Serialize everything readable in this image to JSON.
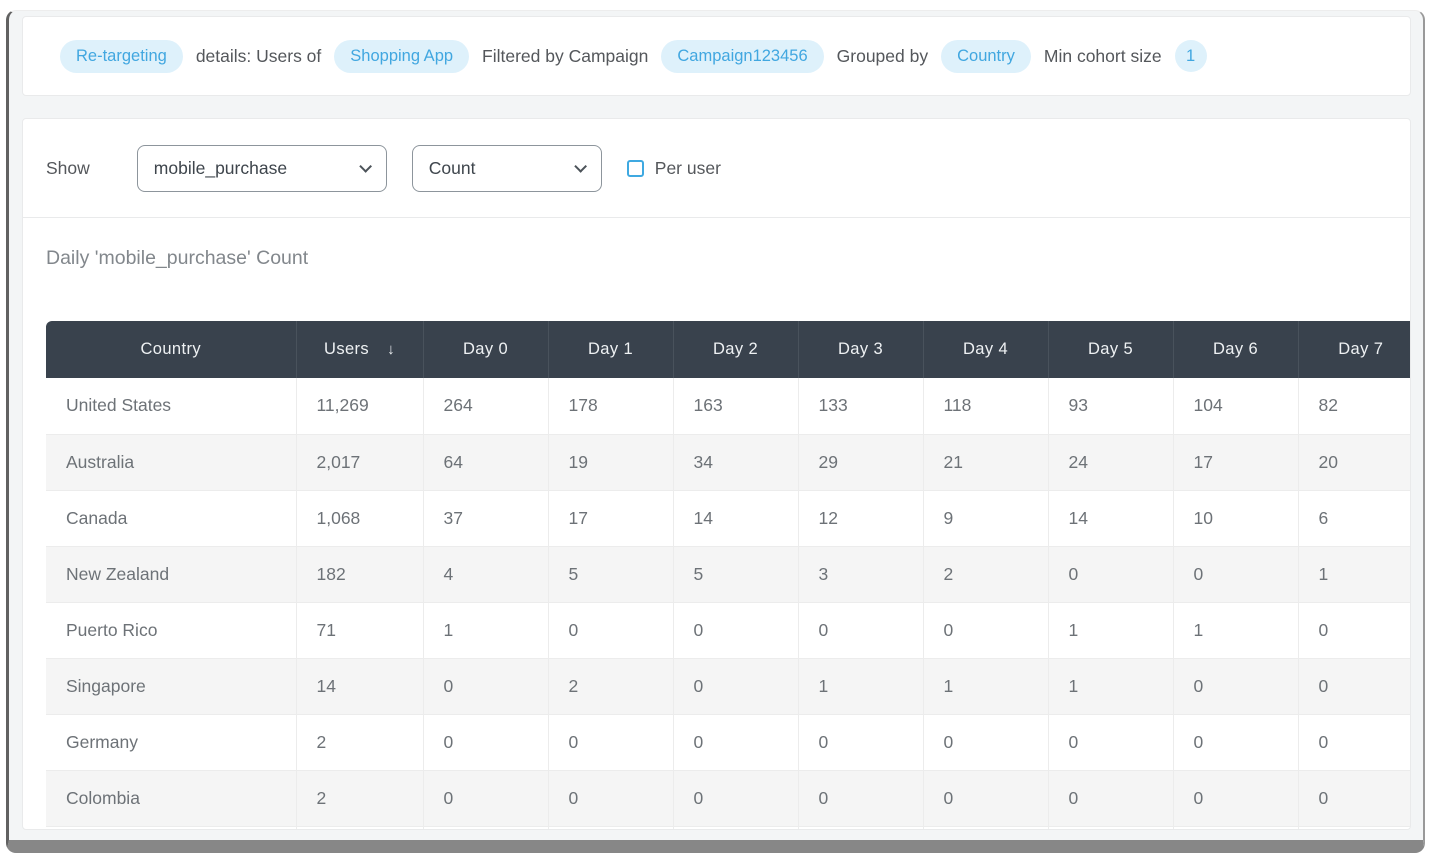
{
  "breadcrumb": {
    "segments": [
      {
        "type": "pill",
        "name": "cohort-name-pill",
        "text": "Re-targeting"
      },
      {
        "type": "text",
        "name": "crumb-text",
        "text": "details: Users of"
      },
      {
        "type": "pill",
        "name": "app-name-pill",
        "text": "Shopping App"
      },
      {
        "type": "text",
        "name": "crumb-text",
        "text": "Filtered by Campaign"
      },
      {
        "type": "pill",
        "name": "campaign-pill",
        "text": "Campaign123456"
      },
      {
        "type": "text",
        "name": "crumb-text",
        "text": "Grouped by"
      },
      {
        "type": "pill",
        "name": "group-by-pill",
        "text": "Country"
      },
      {
        "type": "text",
        "name": "crumb-text",
        "text": "Min cohort size"
      },
      {
        "type": "pill-round",
        "name": "min-cohort-size-pill",
        "text": "1"
      }
    ]
  },
  "filters": {
    "show_label": "Show",
    "event_select_value": "mobile_purchase",
    "aggregation_select_value": "Count",
    "per_user_label": "Per user",
    "per_user_checked": false
  },
  "section": {
    "title": "Daily 'mobile_purchase' Count"
  },
  "table": {
    "columns": [
      "Country",
      "Users",
      "Day 0",
      "Day 1",
      "Day 2",
      "Day 3",
      "Day 4",
      "Day 5",
      "Day 6",
      "Day 7"
    ],
    "sorted_column": "Users",
    "sort_direction_icon": "↓",
    "rows": [
      {
        "country": "United States",
        "users": "11,269",
        "days": [
          "264",
          "178",
          "163",
          "133",
          "118",
          "93",
          "104",
          "82"
        ]
      },
      {
        "country": "Australia",
        "users": "2,017",
        "days": [
          "64",
          "19",
          "34",
          "29",
          "21",
          "24",
          "17",
          "20"
        ]
      },
      {
        "country": "Canada",
        "users": "1,068",
        "days": [
          "37",
          "17",
          "14",
          "12",
          "9",
          "14",
          "10",
          "6"
        ]
      },
      {
        "country": "New Zealand",
        "users": "182",
        "days": [
          "4",
          "5",
          "5",
          "3",
          "2",
          "0",
          "0",
          "1"
        ]
      },
      {
        "country": "Puerto Rico",
        "users": "71",
        "days": [
          "1",
          "0",
          "0",
          "0",
          "0",
          "1",
          "1",
          "0"
        ]
      },
      {
        "country": "Singapore",
        "users": "14",
        "days": [
          "0",
          "2",
          "0",
          "1",
          "1",
          "1",
          "0",
          "0"
        ]
      },
      {
        "country": "Germany",
        "users": "2",
        "days": [
          "0",
          "0",
          "0",
          "0",
          "0",
          "0",
          "0",
          "0"
        ]
      },
      {
        "country": "Colombia",
        "users": "2",
        "days": [
          "0",
          "0",
          "0",
          "0",
          "0",
          "0",
          "0",
          "0"
        ]
      }
    ]
  },
  "colors": {
    "pill_bg": "#def1fb",
    "pill_text": "#41a7e0",
    "table_header_bg": "#39424d",
    "accent_blue": "#3fa9e1",
    "alt_row_bg": "#f5f5f5"
  }
}
